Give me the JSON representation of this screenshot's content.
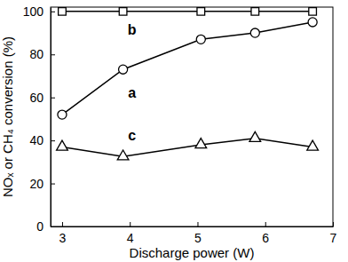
{
  "chart_data": {
    "type": "line",
    "x_label": "Discharge power (W)",
    "y_label": "NOₓ or CH₄ conversion (%)",
    "x": [
      3,
      3.9,
      5.05,
      5.85,
      6.7
    ],
    "series": [
      {
        "name": "a",
        "color": "#000000",
        "marker": "circle",
        "values": [
          52,
          73,
          87,
          90,
          95
        ]
      },
      {
        "name": "b",
        "color": "#000000",
        "marker": "square",
        "values": [
          100,
          100,
          100,
          100,
          100
        ]
      },
      {
        "name": "c",
        "color": "#000000",
        "marker": "triangle",
        "values": [
          37,
          32.5,
          38,
          41,
          37
        ]
      }
    ],
    "xlim": [
      2.83,
      7
    ],
    "xticks": [
      3,
      4,
      5,
      6,
      7
    ],
    "ylim": [
      0,
      102
    ],
    "yticks": [
      0,
      20,
      40,
      60,
      80,
      100
    ],
    "grid": false
  }
}
